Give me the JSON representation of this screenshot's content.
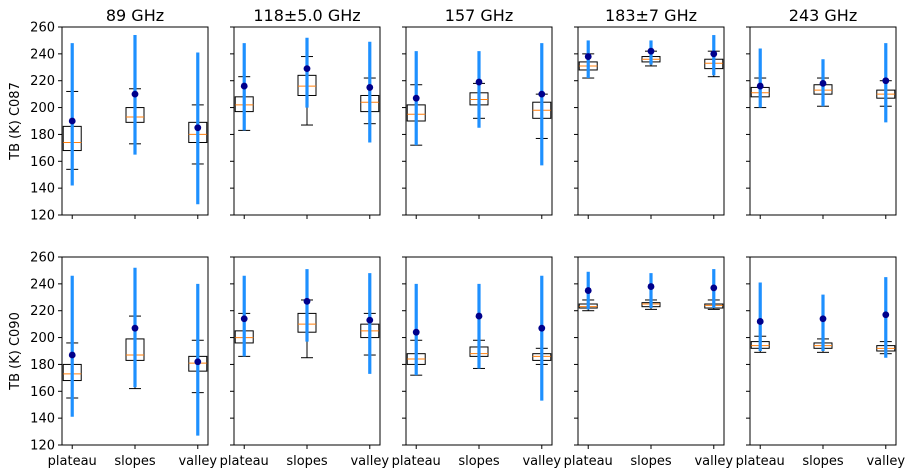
{
  "chart_data": {
    "type": "boxplot",
    "ylim": [
      120,
      260
    ],
    "yticks": [
      120,
      140,
      160,
      180,
      200,
      220,
      240,
      260
    ],
    "categories": [
      "plateau",
      "slopes",
      "valley"
    ],
    "columns": [
      "89 GHz",
      "118±5.0 GHz",
      "157 GHz",
      "183±7 GHz",
      "243 GHz"
    ],
    "row_labels": [
      "TB (K) C087",
      "TB (K) C090"
    ],
    "colors": {
      "box": "#000000",
      "median": "#ff7f0e",
      "range_bar": "#1e90ff",
      "mean_dot": "#00008b"
    },
    "rows": [
      [
        [
          {
            "min": 142,
            "max": 248,
            "wlo": 154,
            "whi": 212,
            "q1": 168,
            "q3": 186,
            "median": 174,
            "mean": 190
          },
          {
            "min": 165,
            "max": 254,
            "wlo": 173,
            "whi": 214,
            "q1": 189,
            "q3": 200,
            "median": 193,
            "mean": 210
          },
          {
            "min": 128,
            "max": 241,
            "wlo": 158,
            "whi": 202,
            "q1": 174,
            "q3": 189,
            "median": 180,
            "mean": 185
          }
        ],
        [
          {
            "min": 183,
            "max": 248,
            "wlo": 183,
            "whi": 223,
            "q1": 197,
            "q3": 208,
            "median": 202,
            "mean": 216
          },
          {
            "min": 200,
            "max": 252,
            "wlo": 187,
            "whi": 238,
            "q1": 209,
            "q3": 224,
            "median": 216,
            "mean": 229
          },
          {
            "min": 174,
            "max": 249,
            "wlo": 188,
            "whi": 222,
            "q1": 197,
            "q3": 209,
            "median": 204,
            "mean": 215
          }
        ],
        [
          {
            "min": 172,
            "max": 242,
            "wlo": 172,
            "whi": 217,
            "q1": 190,
            "q3": 202,
            "median": 195,
            "mean": 207
          },
          {
            "min": 185,
            "max": 242,
            "wlo": 192,
            "whi": 218,
            "q1": 202,
            "q3": 211,
            "median": 206,
            "mean": 219
          },
          {
            "min": 157,
            "max": 248,
            "wlo": 177,
            "whi": 210,
            "q1": 192,
            "q3": 204,
            "median": 198,
            "mean": 210
          }
        ],
        [
          {
            "min": 222,
            "max": 250,
            "wlo": 222,
            "whi": 240,
            "q1": 228,
            "q3": 234,
            "median": 231,
            "mean": 238
          },
          {
            "min": 232,
            "max": 250,
            "wlo": 231,
            "whi": 242,
            "q1": 234,
            "q3": 238,
            "median": 236,
            "mean": 242
          },
          {
            "min": 224,
            "max": 254,
            "wlo": 223,
            "whi": 242,
            "q1": 229,
            "q3": 236,
            "median": 233,
            "mean": 240
          }
        ],
        [
          {
            "min": 200,
            "max": 244,
            "wlo": 200,
            "whi": 222,
            "q1": 208,
            "q3": 215,
            "median": 211,
            "mean": 216
          },
          {
            "min": 201,
            "max": 236,
            "wlo": 201,
            "whi": 222,
            "q1": 210,
            "q3": 217,
            "median": 213,
            "mean": 218
          },
          {
            "min": 189,
            "max": 248,
            "wlo": 201,
            "whi": 220,
            "q1": 207,
            "q3": 213,
            "median": 210,
            "mean": 220
          }
        ]
      ],
      [
        [
          {
            "min": 141,
            "max": 246,
            "wlo": 155,
            "whi": 196,
            "q1": 168,
            "q3": 180,
            "median": 173,
            "mean": 187
          },
          {
            "min": 163,
            "max": 252,
            "wlo": 162,
            "whi": 216,
            "q1": 183,
            "q3": 199,
            "median": 187,
            "mean": 207
          },
          {
            "min": 127,
            "max": 240,
            "wlo": 159,
            "whi": 198,
            "q1": 175,
            "q3": 186,
            "median": 181,
            "mean": 182
          }
        ],
        [
          {
            "min": 186,
            "max": 246,
            "wlo": 186,
            "whi": 218,
            "q1": 196,
            "q3": 205,
            "median": 200,
            "mean": 214
          },
          {
            "min": 197,
            "max": 251,
            "wlo": 185,
            "whi": 228,
            "q1": 204,
            "q3": 218,
            "median": 210,
            "mean": 227
          },
          {
            "min": 173,
            "max": 248,
            "wlo": 187,
            "whi": 218,
            "q1": 200,
            "q3": 210,
            "median": 205,
            "mean": 213
          }
        ],
        [
          {
            "min": 172,
            "max": 240,
            "wlo": 172,
            "whi": 198,
            "q1": 180,
            "q3": 188,
            "median": 184,
            "mean": 204
          },
          {
            "min": 177,
            "max": 240,
            "wlo": 177,
            "whi": 198,
            "q1": 186,
            "q3": 193,
            "median": 188,
            "mean": 216
          },
          {
            "min": 153,
            "max": 246,
            "wlo": 180,
            "whi": 192,
            "q1": 183,
            "q3": 188,
            "median": 186,
            "mean": 207
          }
        ],
        [
          {
            "min": 221,
            "max": 249,
            "wlo": 220,
            "whi": 228,
            "q1": 222,
            "q3": 225,
            "median": 223,
            "mean": 235
          },
          {
            "min": 222,
            "max": 248,
            "wlo": 221,
            "whi": 228,
            "q1": 223,
            "q3": 226,
            "median": 225,
            "mean": 238
          },
          {
            "min": 222,
            "max": 251,
            "wlo": 221,
            "whi": 228,
            "q1": 222,
            "q3": 225,
            "median": 224,
            "mean": 237
          }
        ],
        [
          {
            "min": 190,
            "max": 241,
            "wlo": 189,
            "whi": 201,
            "q1": 192,
            "q3": 197,
            "median": 194,
            "mean": 212
          },
          {
            "min": 190,
            "max": 232,
            "wlo": 189,
            "whi": 199,
            "q1": 192,
            "q3": 196,
            "median": 194,
            "mean": 214
          },
          {
            "min": 185,
            "max": 245,
            "wlo": 188,
            "whi": 197,
            "q1": 190,
            "q3": 194,
            "median": 192,
            "mean": 217
          }
        ]
      ]
    ]
  }
}
